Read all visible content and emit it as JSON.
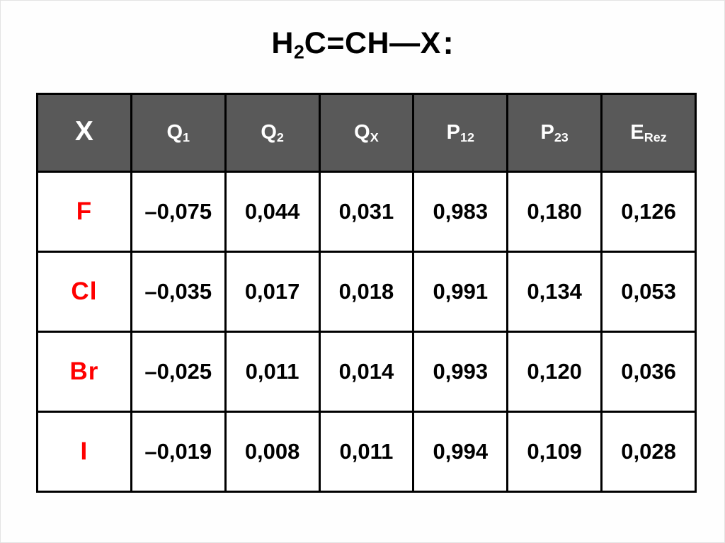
{
  "title": {
    "h": "H",
    "h_sub": "2",
    "rest": "C=CH—X",
    "colon": ":"
  },
  "colors": {
    "header_bg": "#595959",
    "header_text": "#ffffff",
    "halogen": "#ff0000",
    "border": "#000000",
    "slide_bg": "#fefefe"
  },
  "table": {
    "headers": [
      {
        "base": "X",
        "sub": ""
      },
      {
        "base": "Q",
        "sub": "1"
      },
      {
        "base": "Q",
        "sub": "2"
      },
      {
        "base": "Q",
        "sub": "X"
      },
      {
        "base": "P",
        "sub": "12"
      },
      {
        "base": "P",
        "sub": "23"
      },
      {
        "base": "E",
        "sub": "Rez"
      }
    ],
    "rows": [
      {
        "x": "F",
        "values": [
          "–0,075",
          "0,044",
          "0,031",
          "0,983",
          "0,180",
          "0,126"
        ]
      },
      {
        "x": "Cl",
        "values": [
          "–0,035",
          "0,017",
          "0,018",
          "0,991",
          "0,134",
          "0,053"
        ]
      },
      {
        "x": "Br",
        "values": [
          "–0,025",
          "0,011",
          "0,014",
          "0,993",
          "0,120",
          "0,036"
        ]
      },
      {
        "x": "I",
        "values": [
          "–0,019",
          "0,008",
          "0,011",
          "0,994",
          "0,109",
          "0,028"
        ]
      }
    ]
  },
  "chart_data": {
    "type": "table",
    "title": "H2C=CH—X:",
    "columns": [
      "X",
      "Q1",
      "Q2",
      "QX",
      "P12",
      "P23",
      "ERez"
    ],
    "rows": [
      [
        "F",
        "–0,075",
        "0,044",
        "0,031",
        "0,983",
        "0,180",
        "0,126"
      ],
      [
        "Cl",
        "–0,035",
        "0,017",
        "0,018",
        "0,991",
        "0,134",
        "0,053"
      ],
      [
        "Br",
        "–0,025",
        "0,011",
        "0,014",
        "0,993",
        "0,120",
        "0,036"
      ],
      [
        "I",
        "–0,019",
        "0,008",
        "0,011",
        "0,994",
        "0,109",
        "0,028"
      ]
    ]
  }
}
